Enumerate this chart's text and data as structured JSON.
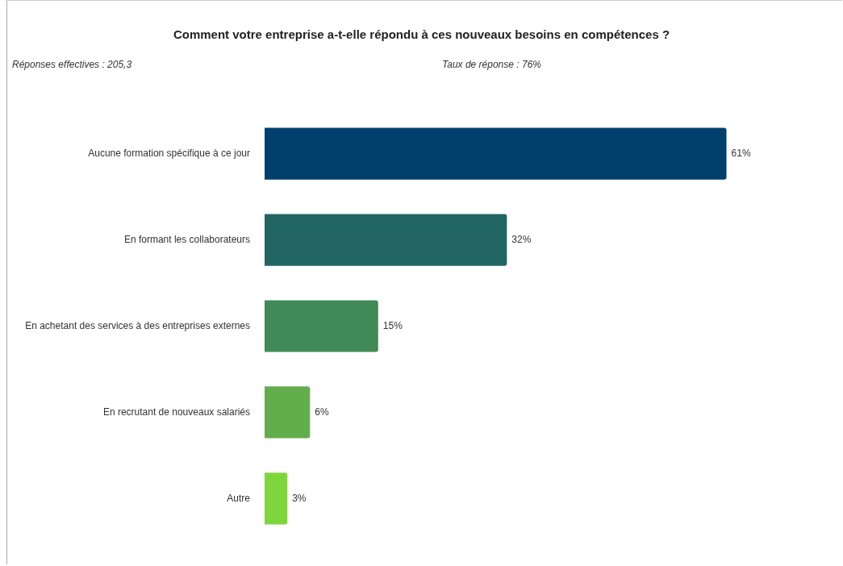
{
  "chart_data": {
    "type": "bar",
    "orientation": "horizontal",
    "title": "Comment votre entreprise a-t-elle répondu à ces nouveaux besoins en compétences ?",
    "annotations": [
      "Réponses effectives : 205,3",
      "Taux de réponse : 76%"
    ],
    "categories": [
      "Aucune formation spécifique à ce jour",
      "En formant les collaborateurs",
      "En achetant des services à des entreprises externes",
      "En recrutant de nouveaux salariés",
      "Autre"
    ],
    "values": [
      61,
      32,
      15,
      6,
      3
    ],
    "colors": [
      "#003f6e",
      "#216663",
      "#3f8a56",
      "#62ae4c",
      "#7ed63c"
    ],
    "value_labels": [
      "61%",
      "32%",
      "15%",
      "6%",
      "3%"
    ],
    "grid": false,
    "legend": false,
    "tick_labels": "y"
  }
}
